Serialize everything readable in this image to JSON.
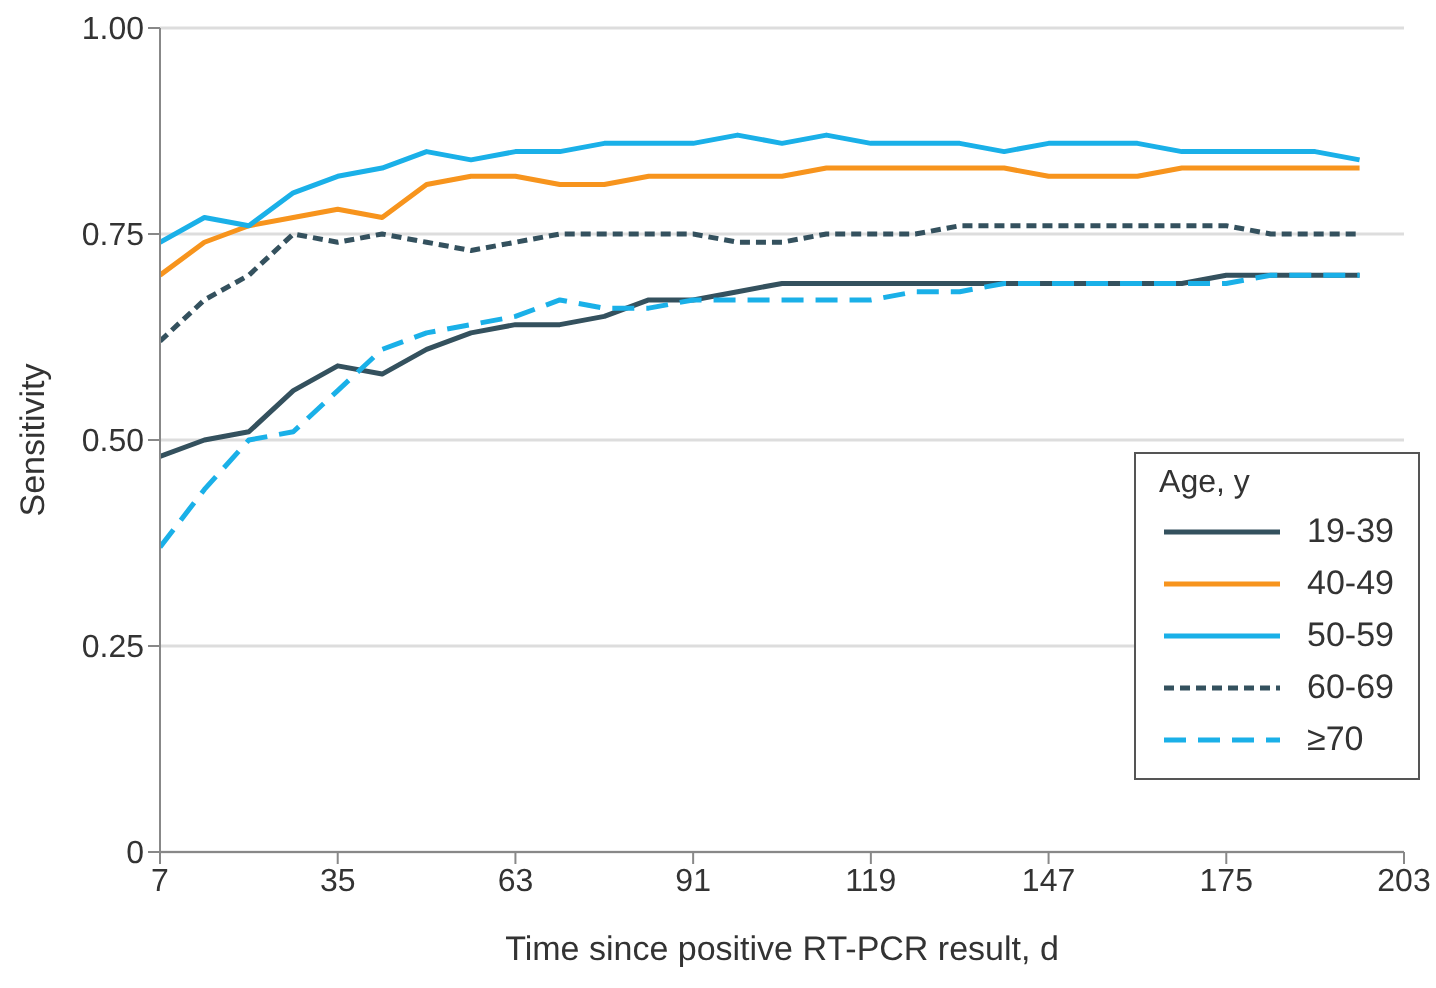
{
  "chart_data": {
    "type": "line",
    "xlabel": "Time since positive RT-PCR result, d",
    "ylabel": "Sensitivity",
    "legend_title": "Age, y",
    "x": [
      7,
      14,
      21,
      28,
      35,
      42,
      49,
      56,
      63,
      70,
      77,
      84,
      91,
      98,
      105,
      112,
      119,
      126,
      133,
      140,
      147,
      154,
      161,
      168,
      175,
      182,
      189,
      196
    ],
    "series": [
      {
        "name": "19-39",
        "color": "#34515e",
        "line_style": "solid",
        "values": [
          0.48,
          0.5,
          0.51,
          0.56,
          0.59,
          0.58,
          0.61,
          0.63,
          0.64,
          0.64,
          0.65,
          0.67,
          0.67,
          0.68,
          0.69,
          0.69,
          0.69,
          0.69,
          0.69,
          0.69,
          0.69,
          0.69,
          0.69,
          0.69,
          0.7,
          0.7,
          0.7,
          0.7
        ]
      },
      {
        "name": "40-49",
        "color": "#f7941d",
        "line_style": "solid",
        "values": [
          0.7,
          0.74,
          0.76,
          0.77,
          0.78,
          0.77,
          0.81,
          0.82,
          0.82,
          0.81,
          0.81,
          0.82,
          0.82,
          0.82,
          0.82,
          0.83,
          0.83,
          0.83,
          0.83,
          0.83,
          0.82,
          0.82,
          0.82,
          0.83,
          0.83,
          0.83,
          0.83,
          0.83
        ]
      },
      {
        "name": "50-59",
        "color": "#1ab0e8",
        "line_style": "solid",
        "values": [
          0.74,
          0.77,
          0.76,
          0.8,
          0.82,
          0.83,
          0.85,
          0.84,
          0.85,
          0.85,
          0.86,
          0.86,
          0.86,
          0.87,
          0.86,
          0.87,
          0.86,
          0.86,
          0.86,
          0.85,
          0.86,
          0.86,
          0.86,
          0.85,
          0.85,
          0.85,
          0.85,
          0.84
        ]
      },
      {
        "name": "60-69",
        "color": "#34515e",
        "line_style": "dotted",
        "values": [
          0.62,
          0.67,
          0.7,
          0.75,
          0.74,
          0.75,
          0.74,
          0.73,
          0.74,
          0.75,
          0.75,
          0.75,
          0.75,
          0.74,
          0.74,
          0.75,
          0.75,
          0.75,
          0.76,
          0.76,
          0.76,
          0.76,
          0.76,
          0.76,
          0.76,
          0.75,
          0.75,
          0.75
        ]
      },
      {
        "name": "≥70",
        "color": "#1ab0e8",
        "line_style": "dashed",
        "values": [
          0.37,
          0.44,
          0.5,
          0.51,
          0.56,
          0.61,
          0.63,
          0.64,
          0.65,
          0.67,
          0.66,
          0.66,
          0.67,
          0.67,
          0.67,
          0.67,
          0.67,
          0.68,
          0.68,
          0.69,
          0.69,
          0.69,
          0.69,
          0.69,
          0.69,
          0.7,
          0.7,
          0.7
        ]
      }
    ],
    "xlim": [
      7,
      203
    ],
    "xticks": [
      7,
      35,
      63,
      91,
      119,
      147,
      175,
      203
    ],
    "ylim": [
      0,
      1
    ],
    "yticks": [
      0,
      0.25,
      {
        "value": 0.5,
        "label": "0.50"
      },
      {
        "value": 0.75,
        "label": "0.75"
      },
      {
        "value": 1,
        "label": "1.00"
      }
    ],
    "grid": "y",
    "legend": "bottom right",
    "marker": "none"
  }
}
